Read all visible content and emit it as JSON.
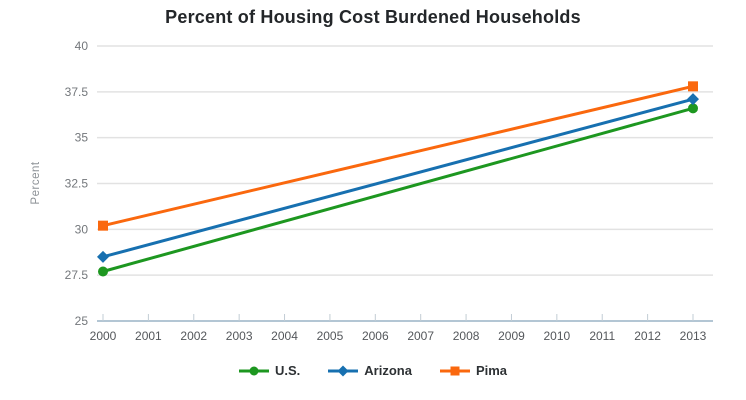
{
  "chart_data": {
    "type": "line",
    "title": "Percent of Housing Cost Burdened Households",
    "xlabel": "",
    "ylabel": "Percent",
    "categories": [
      "2000",
      "2001",
      "2002",
      "2003",
      "2004",
      "2005",
      "2006",
      "2007",
      "2008",
      "2009",
      "2010",
      "2011",
      "2012",
      "2013"
    ],
    "y_ticks": [
      25,
      27.5,
      30,
      32.5,
      35,
      37.5,
      40
    ],
    "y_tick_labels": [
      "25",
      "27.5",
      "30",
      "32.5",
      "35",
      "37.5",
      "40"
    ],
    "ylim": [
      25,
      40
    ],
    "grid": "horizontal-only",
    "legend_position": "bottom-center",
    "series": [
      {
        "name": "U.S.",
        "color": "#1d9720",
        "marker": "circle",
        "x": [
          "2000",
          "2013"
        ],
        "values": [
          27.7,
          36.6
        ]
      },
      {
        "name": "Arizona",
        "color": "#1770b0",
        "marker": "diamond",
        "x": [
          "2000",
          "2013"
        ],
        "values": [
          28.5,
          37.1
        ]
      },
      {
        "name": "Pima",
        "color": "#fa680e",
        "marker": "square",
        "x": [
          "2000",
          "2013"
        ],
        "values": [
          30.2,
          37.8
        ]
      }
    ],
    "style": {
      "gridline_color": "#e2e2e2",
      "axis_line_color": "#b3c6d4",
      "tick_color": "#c2ccd4",
      "y_label_color": "#73777b",
      "x_label_color": "#54575b",
      "title_color": "#232629",
      "legend_text_color": "#2d3134"
    }
  }
}
